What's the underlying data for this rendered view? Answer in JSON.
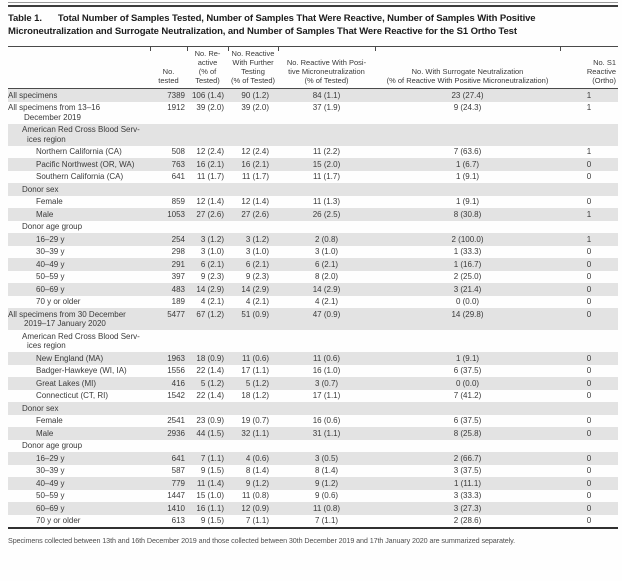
{
  "title": {
    "tag": "Table 1.",
    "text": "Total Number of Samples Tested, Number of Samples That Were Reactive, Number of Samples With Positive Microneutralization and Surrogate Neutralization, and Number of Samples That Were Reactive for the S1 Ortho Test"
  },
  "table": {
    "columns": [
      {
        "id": "row-label",
        "lines": []
      },
      {
        "id": "no-tested",
        "lines": [
          "No.",
          "tested"
        ]
      },
      {
        "id": "no-reactive-pct-tested",
        "lines": [
          "No. Re-",
          "active",
          "(% of",
          "Tested)"
        ]
      },
      {
        "id": "no-reactive-further-testing",
        "lines": [
          "No. Reactive",
          "With Further",
          "Testing",
          "(% of Tested)"
        ]
      },
      {
        "id": "no-reactive-positive-microneutralization",
        "lines": [
          "No. Reactive With Posi-",
          "tive Microneutralization",
          "(% of Tested)"
        ]
      },
      {
        "id": "no-with-surrogate-neutralization",
        "lines": [
          "No. With Surrogate Neutralization",
          "(% of Reactive With Positive Microneutralization)"
        ]
      },
      {
        "id": "no-s1-reactive-ortho",
        "lines": [
          "No. S1",
          "Reactive",
          "(Ortho)"
        ]
      }
    ],
    "rows": [
      {
        "label": [
          "All specimens"
        ],
        "indent": 0,
        "subheader": false,
        "shaded": true,
        "values": [
          "7389",
          "106 (1.4)",
          "90 (1.2)",
          "84 (1.1)",
          "23 (27.4)",
          "1"
        ]
      },
      {
        "label": [
          "All specimens from 13–16",
          "December 2019"
        ],
        "indent": 0,
        "subheader": false,
        "shaded": false,
        "values": [
          "1912",
          "39 (2.0)",
          "39 (2.0)",
          "37 (1.9)",
          "9 (24.3)",
          "1"
        ]
      },
      {
        "label": [
          "American Red Cross Blood Serv-",
          "ices region"
        ],
        "indent": 1,
        "subheader": true,
        "shaded": true,
        "values": [
          "",
          "",
          "",
          "",
          "",
          ""
        ]
      },
      {
        "label": [
          "Northern California (CA)"
        ],
        "indent": 2,
        "subheader": false,
        "shaded": false,
        "values": [
          "508",
          "12 (2.4)",
          "12 (2.4)",
          "11 (2.2)",
          "7 (63.6)",
          "1"
        ]
      },
      {
        "label": [
          "Pacific Northwest (OR, WA)"
        ],
        "indent": 2,
        "subheader": false,
        "shaded": true,
        "values": [
          "763",
          "16 (2.1)",
          "16 (2.1)",
          "15 (2.0)",
          "1 (6.7)",
          "0"
        ]
      },
      {
        "label": [
          "Southern California (CA)"
        ],
        "indent": 2,
        "subheader": false,
        "shaded": false,
        "values": [
          "641",
          "11 (1.7)",
          "11 (1.7)",
          "11 (1.7)",
          "1 (9.1)",
          "0"
        ]
      },
      {
        "label": [
          "Donor sex"
        ],
        "indent": 1,
        "subheader": true,
        "shaded": true,
        "values": [
          "",
          "",
          "",
          "",
          "",
          ""
        ]
      },
      {
        "label": [
          "Female"
        ],
        "indent": 2,
        "subheader": false,
        "shaded": false,
        "values": [
          "859",
          "12 (1.4)",
          "12 (1.4)",
          "11 (1.3)",
          "1 (9.1)",
          "0"
        ]
      },
      {
        "label": [
          "Male"
        ],
        "indent": 2,
        "subheader": false,
        "shaded": true,
        "values": [
          "1053",
          "27 (2.6)",
          "27 (2.6)",
          "26 (2.5)",
          "8 (30.8)",
          "1"
        ]
      },
      {
        "label": [
          "Donor age group"
        ],
        "indent": 1,
        "subheader": true,
        "shaded": false,
        "values": [
          "",
          "",
          "",
          "",
          "",
          ""
        ]
      },
      {
        "label": [
          "16–29 y"
        ],
        "indent": 2,
        "subheader": false,
        "shaded": true,
        "values": [
          "254",
          "3 (1.2)",
          "3 (1.2)",
          "2 (0.8)",
          "2 (100.0)",
          "1"
        ]
      },
      {
        "label": [
          "30–39 y"
        ],
        "indent": 2,
        "subheader": false,
        "shaded": false,
        "values": [
          "298",
          "3 (1.0)",
          "3 (1.0)",
          "3 (1.0)",
          "1 (33.3)",
          "0"
        ]
      },
      {
        "label": [
          "40–49 y"
        ],
        "indent": 2,
        "subheader": false,
        "shaded": true,
        "values": [
          "291",
          "6 (2.1)",
          "6 (2.1)",
          "6 (2.1)",
          "1 (16.7)",
          "0"
        ]
      },
      {
        "label": [
          "50–59 y"
        ],
        "indent": 2,
        "subheader": false,
        "shaded": false,
        "values": [
          "397",
          "9 (2.3)",
          "9 (2.3)",
          "8 (2.0)",
          "2 (25.0)",
          "0"
        ]
      },
      {
        "label": [
          "60–69 y"
        ],
        "indent": 2,
        "subheader": false,
        "shaded": true,
        "values": [
          "483",
          "14 (2.9)",
          "14 (2.9)",
          "14 (2.9)",
          "3 (21.4)",
          "0"
        ]
      },
      {
        "label": [
          "70 y or older"
        ],
        "indent": 2,
        "subheader": false,
        "shaded": false,
        "values": [
          "189",
          "4 (2.1)",
          "4 (2.1)",
          "4 (2.1)",
          "0 (0.0)",
          "0"
        ]
      },
      {
        "label": [
          "All specimens from 30 December",
          "2019–17 January 2020"
        ],
        "indent": 0,
        "subheader": false,
        "shaded": true,
        "values": [
          "5477",
          "67 (1.2)",
          "51 (0.9)",
          "47 (0.9)",
          "14 (29.8)",
          "0"
        ]
      },
      {
        "label": [
          "American Red Cross Blood Serv-",
          "ices region"
        ],
        "indent": 1,
        "subheader": true,
        "shaded": false,
        "values": [
          "",
          "",
          "",
          "",
          "",
          ""
        ]
      },
      {
        "label": [
          "New England (MA)"
        ],
        "indent": 2,
        "subheader": false,
        "shaded": true,
        "values": [
          "1963",
          "18 (0.9)",
          "11 (0.6)",
          "11 (0.6)",
          "1 (9.1)",
          "0"
        ]
      },
      {
        "label": [
          "Badger-Hawkeye (WI, IA)"
        ],
        "indent": 2,
        "subheader": false,
        "shaded": false,
        "values": [
          "1556",
          "22 (1.4)",
          "17 (1.1)",
          "16 (1.0)",
          "6 (37.5)",
          "0"
        ]
      },
      {
        "label": [
          "Great Lakes (MI)"
        ],
        "indent": 2,
        "subheader": false,
        "shaded": true,
        "values": [
          "416",
          "5 (1.2)",
          "5 (1.2)",
          "3 (0.7)",
          "0 (0.0)",
          "0"
        ]
      },
      {
        "label": [
          "Connecticut (CT, RI)"
        ],
        "indent": 2,
        "subheader": false,
        "shaded": false,
        "values": [
          "1542",
          "22 (1.4)",
          "18 (1.2)",
          "17 (1.1)",
          "7 (41.2)",
          "0"
        ]
      },
      {
        "label": [
          "Donor sex"
        ],
        "indent": 1,
        "subheader": true,
        "shaded": true,
        "values": [
          "",
          "",
          "",
          "",
          "",
          ""
        ]
      },
      {
        "label": [
          "Female"
        ],
        "indent": 2,
        "subheader": false,
        "shaded": false,
        "values": [
          "2541",
          "23 (0.9)",
          "19 (0.7)",
          "16 (0.6)",
          "6 (37.5)",
          "0"
        ]
      },
      {
        "label": [
          "Male"
        ],
        "indent": 2,
        "subheader": false,
        "shaded": true,
        "values": [
          "2936",
          "44 (1.5)",
          "32 (1.1)",
          "31 (1.1)",
          "8 (25.8)",
          "0"
        ]
      },
      {
        "label": [
          "Donor age group"
        ],
        "indent": 1,
        "subheader": true,
        "shaded": false,
        "values": [
          "",
          "",
          "",
          "",
          "",
          ""
        ]
      },
      {
        "label": [
          "16–29 y"
        ],
        "indent": 2,
        "subheader": false,
        "shaded": true,
        "values": [
          "641",
          "7 (1.1)",
          "4 (0.6)",
          "3 (0.5)",
          "2 (66.7)",
          "0"
        ]
      },
      {
        "label": [
          "30–39 y"
        ],
        "indent": 2,
        "subheader": false,
        "shaded": false,
        "values": [
          "587",
          "9 (1.5)",
          "8 (1.4)",
          "8 (1.4)",
          "3 (37.5)",
          "0"
        ]
      },
      {
        "label": [
          "40–49 y"
        ],
        "indent": 2,
        "subheader": false,
        "shaded": true,
        "values": [
          "779",
          "11 (1.4)",
          "9 (1.2)",
          "9 (1.2)",
          "1 (11.1)",
          "0"
        ]
      },
      {
        "label": [
          "50–59 y"
        ],
        "indent": 2,
        "subheader": false,
        "shaded": false,
        "values": [
          "1447",
          "15 (1.0)",
          "11 (0.8)",
          "9 (0.6)",
          "3 (33.3)",
          "0"
        ]
      },
      {
        "label": [
          "60–69 y"
        ],
        "indent": 2,
        "subheader": false,
        "shaded": true,
        "values": [
          "1410",
          "16 (1.1)",
          "12 (0.9)",
          "11 (0.8)",
          "3 (27.3)",
          "0"
        ]
      },
      {
        "label": [
          "70 y or older"
        ],
        "indent": 2,
        "subheader": false,
        "shaded": false,
        "values": [
          "613",
          "9 (1.5)",
          "7 (1.1)",
          "7 (1.1)",
          "2 (28.6)",
          "0"
        ]
      }
    ]
  },
  "colors": {
    "shaded_row": "#e3e3e3",
    "rule_dark": "#3c3c3c",
    "text": "#3a3a3a"
  },
  "footnote": "Specimens collected between 13th and 16th December 2019 and those collected between 30th December 2019 and 17th January 2020 are summarized separately."
}
